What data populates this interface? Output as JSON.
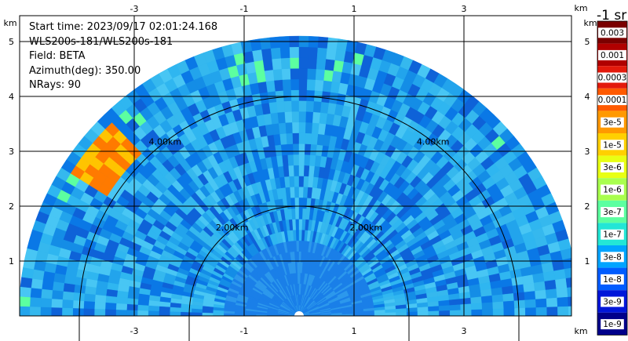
{
  "info": {
    "start_time": "Start time: 2023/09/17 02:01:24.168",
    "instrument": "WLS200s-181/WLS200s-181",
    "field": "Field: BETA",
    "azimuth": "Azimuth(deg): 350.00",
    "nrays": "NRays: 90"
  },
  "colorbar": {
    "title": "-1 sr",
    "labels": [
      "0.003",
      "0.001",
      "0.0003",
      "0.0001",
      "3e-5",
      "1e-5",
      "3e-6",
      "1e-6",
      "3e-7",
      "1e-7",
      "3e-8",
      "1e-8",
      "3e-9",
      "1e-9"
    ],
    "colors": [
      "#7a0000",
      "#b00000",
      "#e31a0c",
      "#ff5a00",
      "#ff9900",
      "#ffd000",
      "#e8ff14",
      "#a9ff4e",
      "#5cffa0",
      "#23e6d6",
      "#00a4ff",
      "#005cff",
      "#0016d9",
      "#00008a"
    ]
  },
  "chart_data": {
    "type": "heatmap",
    "subtype": "PPI lidar scan (polar, half-disk)",
    "x_unit": "km",
    "y_unit": "km",
    "xlim": [
      -5.5,
      5.5
    ],
    "ylim": [
      0,
      5.5
    ],
    "x_ticks": [
      "-3",
      "-1",
      "1",
      "3"
    ],
    "y_ticks": [
      "1",
      "2",
      "3",
      "4",
      "5"
    ],
    "x_tick_values": [
      -3,
      -1,
      1,
      3
    ],
    "y_tick_values": [
      1,
      2,
      3,
      4,
      5
    ],
    "axis_unit_label": "km",
    "range_rings": [
      {
        "radius_km": 2,
        "labels": [
          "2.00km",
          "2.00km"
        ]
      },
      {
        "radius_km": 4,
        "labels": [
          "4.00km",
          "4.00km"
        ]
      }
    ],
    "max_range_km": 5.1,
    "grid": true,
    "features": [
      {
        "name": "cloud",
        "azimuth_deg": [
          303,
          316
        ],
        "range_km": [
          4.2,
          4.9
        ],
        "value": "3e-5 to 1e-5"
      },
      {
        "name": "background",
        "value": "1e-7 to 3e-8"
      }
    ]
  }
}
